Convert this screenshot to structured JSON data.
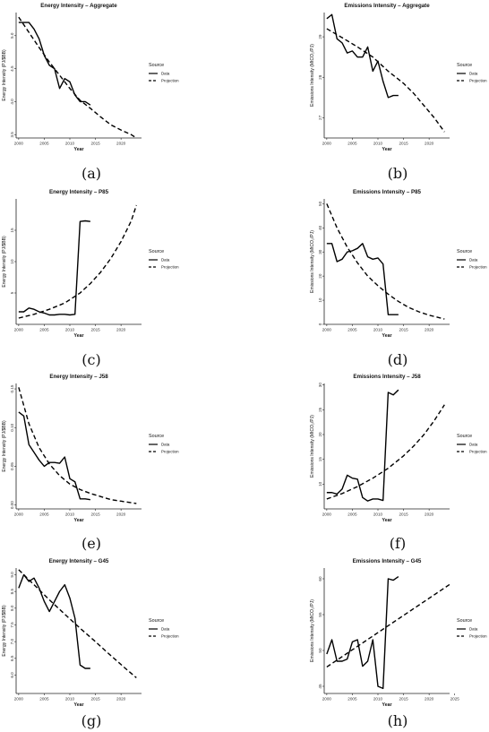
{
  "legend": {
    "title": "Source",
    "data_label": "Data",
    "projection_label": "Projection"
  },
  "chart_data": [
    {
      "id": "a",
      "caption": "(a)",
      "type": "line",
      "title": "Energy Intensity – Aggregate",
      "xlabel": "Year",
      "ylabel": "Energy Intensity (PJ/$BB)",
      "xlim": [
        1999.5,
        2024
      ],
      "ylim": [
        3.45,
        5.35
      ],
      "xticks": [
        2000,
        2005,
        2010,
        2015,
        2020
      ],
      "yticks": [
        3.5,
        4.0,
        4.5,
        5.0
      ],
      "ytick_labels": [
        "3.5",
        "4.0",
        "4.5",
        "5.0"
      ],
      "legend_position": "right",
      "series": [
        {
          "name": "Data",
          "style": "solid",
          "x": [
            2000,
            2001,
            2002,
            2003,
            2004,
            2005,
            2006,
            2007,
            2008,
            2009,
            2010,
            2011,
            2012,
            2013,
            2014
          ],
          "y": [
            5.2,
            5.2,
            5.2,
            5.1,
            4.95,
            4.7,
            4.55,
            4.5,
            4.2,
            4.35,
            4.3,
            4.1,
            4.0,
            4.0,
            3.95
          ]
        },
        {
          "name": "Projection",
          "style": "dashed",
          "x": [
            2000,
            2002,
            2004,
            2006,
            2008,
            2010,
            2012,
            2014,
            2016,
            2018,
            2020,
            2022,
            2023
          ],
          "y": [
            5.28,
            5.05,
            4.82,
            4.6,
            4.4,
            4.2,
            4.02,
            3.9,
            3.77,
            3.65,
            3.57,
            3.5,
            3.45
          ]
        }
      ]
    },
    {
      "id": "b",
      "caption": "(b)",
      "type": "line",
      "title": "Emissions Intensity – Aggregate",
      "xlabel": "Year",
      "ylabel": "Emissions Intensity (MtCO₂/PJ)",
      "xlim": [
        1999.5,
        2024
      ],
      "ylim": [
        26.5,
        29.6
      ],
      "xticks": [
        2000,
        2005,
        2010,
        2015,
        2020
      ],
      "yticks": [
        27,
        28,
        29
      ],
      "ytick_labels": [
        "27",
        "28",
        "29"
      ],
      "legend_position": "right",
      "series": [
        {
          "name": "Data",
          "style": "solid",
          "x": [
            2000,
            2001,
            2002,
            2003,
            2004,
            2005,
            2006,
            2007,
            2008,
            2009,
            2010,
            2011,
            2012,
            2013,
            2014
          ],
          "y": [
            29.45,
            29.55,
            28.95,
            28.85,
            28.6,
            28.65,
            28.5,
            28.5,
            28.75,
            28.15,
            28.4,
            27.9,
            27.5,
            27.55,
            27.55
          ]
        },
        {
          "name": "Projection",
          "style": "dashed",
          "x": [
            2000,
            2003,
            2006,
            2009,
            2012,
            2015,
            2017,
            2019,
            2021,
            2023
          ],
          "y": [
            29.2,
            28.98,
            28.75,
            28.5,
            28.15,
            27.85,
            27.6,
            27.3,
            27.0,
            26.65
          ]
        }
      ]
    },
    {
      "id": "c",
      "caption": "(c)",
      "type": "line",
      "title": "Energy Intensity – P85",
      "xlabel": "Year",
      "ylabel": "Energy Intensity (PJ/$BB)",
      "xlim": [
        1999.5,
        2024
      ],
      "ylim": [
        0,
        20
      ],
      "xticks": [
        2000,
        2005,
        2010,
        2015,
        2020
      ],
      "yticks": [
        5,
        10,
        15
      ],
      "ytick_labels": [
        "5",
        "10",
        "15"
      ],
      "legend_position": "right",
      "series": [
        {
          "name": "Data",
          "style": "solid",
          "x": [
            2000,
            2001,
            2002,
            2003,
            2004,
            2005,
            2006,
            2007,
            2008,
            2009,
            2010,
            2011,
            2012,
            2013,
            2014
          ],
          "y": [
            2.0,
            2.0,
            2.6,
            2.4,
            2.0,
            1.8,
            1.5,
            1.5,
            1.6,
            1.6,
            1.5,
            1.6,
            16.4,
            16.5,
            16.4
          ]
        },
        {
          "name": "Projection",
          "style": "dashed",
          "x": [
            2000,
            2003,
            2006,
            2009,
            2012,
            2014,
            2016,
            2018,
            2020,
            2022,
            2023
          ],
          "y": [
            1.0,
            1.6,
            2.4,
            3.4,
            5.0,
            6.5,
            8.3,
            10.5,
            13.2,
            16.5,
            19.0
          ]
        }
      ]
    },
    {
      "id": "d",
      "caption": "(d)",
      "type": "line",
      "title": "Emissions Intensity – P85",
      "xlabel": "Year",
      "ylabel": "Emissions Intensity (MtCO₂/PJ)",
      "xlim": [
        1999.5,
        2024
      ],
      "ylim": [
        0,
        52
      ],
      "xticks": [
        2000,
        2005,
        2010,
        2015,
        2020
      ],
      "yticks": [
        0,
        10,
        20,
        30,
        40,
        50
      ],
      "ytick_labels": [
        "0",
        "10",
        "20",
        "30",
        "40",
        "50"
      ],
      "legend_position": "right",
      "series": [
        {
          "name": "Data",
          "style": "solid",
          "x": [
            2000,
            2001,
            2002,
            2003,
            2004,
            2005,
            2006,
            2007,
            2008,
            2009,
            2010,
            2011,
            2012,
            2013,
            2014
          ],
          "y": [
            33.5,
            33.5,
            26,
            27,
            30,
            30.5,
            31.5,
            33.5,
            28,
            27,
            27.5,
            25,
            4,
            4,
            4
          ]
        },
        {
          "name": "Projection",
          "style": "dashed",
          "x": [
            2000,
            2002,
            2004,
            2006,
            2008,
            2010,
            2012,
            2014,
            2016,
            2018,
            2020,
            2023
          ],
          "y": [
            50,
            40,
            32,
            25.5,
            20,
            16,
            12.5,
            9.5,
            7,
            5.2,
            3.8,
            2.2
          ]
        }
      ]
    },
    {
      "id": "e",
      "caption": "(e)",
      "type": "line",
      "title": "Energy Intensity – J58",
      "xlabel": "Year",
      "ylabel": "Energy Intensity (PJ/$BB)",
      "xlim": [
        1999.5,
        2024
      ],
      "ylim": [
        -0.005,
        0.157
      ],
      "xticks": [
        2000,
        2005,
        2010,
        2015,
        2020
      ],
      "yticks": [
        0,
        0.05,
        0.1,
        0.15
      ],
      "ytick_labels": [
        "0.00",
        "0.05",
        "0.10",
        "0.15"
      ],
      "legend_position": "right",
      "series": [
        {
          "name": "Data",
          "style": "solid",
          "x": [
            2000,
            2001,
            2002,
            2003,
            2004,
            2005,
            2006,
            2007,
            2008,
            2009,
            2010,
            2011,
            2012,
            2013,
            2014
          ],
          "y": [
            0.12,
            0.115,
            0.078,
            0.068,
            0.058,
            0.05,
            0.055,
            0.055,
            0.054,
            0.062,
            0.034,
            0.03,
            0.008,
            0.008,
            0.007
          ]
        },
        {
          "name": "Projection",
          "style": "dashed",
          "x": [
            2000,
            2002,
            2004,
            2006,
            2008,
            2010,
            2012,
            2014,
            2016,
            2018,
            2020,
            2023
          ],
          "y": [
            0.152,
            0.105,
            0.074,
            0.053,
            0.038,
            0.027,
            0.02,
            0.015,
            0.011,
            0.007,
            0.005,
            0.002
          ]
        }
      ]
    },
    {
      "id": "f",
      "caption": "(f)",
      "type": "line",
      "title": "Emissions Intensity – J58",
      "xlabel": "Year",
      "ylabel": "Emissions Intensity (MtCO₂/PJ)",
      "xlim": [
        1999.5,
        2024
      ],
      "ylim": [
        5,
        30.3
      ],
      "xticks": [
        2000,
        2005,
        2010,
        2015,
        2020
      ],
      "yticks": [
        10,
        15,
        20,
        25,
        30
      ],
      "ytick_labels": [
        "10",
        "15",
        "20",
        "25",
        "30"
      ],
      "legend_position": "right",
      "series": [
        {
          "name": "Data",
          "style": "solid",
          "x": [
            2000,
            2001,
            2002,
            2003,
            2004,
            2005,
            2006,
            2007,
            2008,
            2009,
            2010,
            2011,
            2012,
            2013,
            2014
          ],
          "y": [
            8.3,
            8.3,
            8,
            9,
            11.8,
            11.2,
            11,
            7.3,
            6.6,
            7,
            7,
            6.7,
            28.5,
            28,
            29
          ]
        },
        {
          "name": "Projection",
          "style": "dashed",
          "x": [
            2000,
            2003,
            2006,
            2009,
            2012,
            2015,
            2017,
            2019,
            2021,
            2023
          ],
          "y": [
            7.0,
            8.1,
            9.5,
            11.2,
            13.2,
            15.7,
            17.7,
            20.0,
            22.8,
            26.0
          ]
        }
      ]
    },
    {
      "id": "g",
      "caption": "(g)",
      "type": "line",
      "title": "Energy Intensity – G45",
      "xlabel": "Year",
      "ylabel": "Energy Intensity (PJ/$BB)",
      "xlim": [
        1999.5,
        2024
      ],
      "ylim": [
        5.45,
        9.2
      ],
      "xticks": [
        2000,
        2005,
        2010,
        2015,
        2020
      ],
      "yticks": [
        6.0,
        6.5,
        7.0,
        7.5,
        8.0,
        8.5,
        9.0
      ],
      "ytick_labels": [
        "6.0",
        "6.5",
        "7.0",
        "7.5",
        "8.0",
        "8.5",
        "9.0"
      ],
      "legend_position": "right",
      "series": [
        {
          "name": "Data",
          "style": "solid",
          "x": [
            2000,
            2001,
            2002,
            2003,
            2004,
            2005,
            2006,
            2007,
            2008,
            2009,
            2010,
            2011,
            2012,
            2013,
            2014
          ],
          "y": [
            8.6,
            9.0,
            8.8,
            8.9,
            8.6,
            8.2,
            7.9,
            8.2,
            8.5,
            8.7,
            8.3,
            7.7,
            6.3,
            6.2,
            6.2
          ]
        },
        {
          "name": "Projection",
          "style": "dashed",
          "x": [
            2000,
            2003,
            2006,
            2009,
            2012,
            2015,
            2017,
            2019,
            2021,
            2023
          ],
          "y": [
            9.15,
            8.7,
            8.25,
            7.82,
            7.4,
            7.0,
            6.72,
            6.45,
            6.18,
            5.92
          ]
        }
      ]
    },
    {
      "id": "h",
      "caption": "(h)",
      "type": "line",
      "title": "Emissions Intensity – G45",
      "xlabel": "Year",
      "ylabel": "Emissions Intensity (MtCO₂/PJ)",
      "xlim": [
        1999.5,
        2024
      ],
      "ylim": [
        44,
        61.5
      ],
      "xticks": [
        2000,
        2005,
        2010,
        2015,
        2020,
        2025
      ],
      "yticks": [
        45,
        50,
        55,
        60
      ],
      "ytick_labels": [
        "45",
        "50",
        "55",
        "60"
      ],
      "legend_position": "right",
      "series": [
        {
          "name": "Data",
          "style": "solid",
          "x": [
            2000,
            2001,
            2002,
            2003,
            2004,
            2005,
            2006,
            2007,
            2008,
            2009,
            2010,
            2011,
            2012,
            2013,
            2014
          ],
          "y": [
            49.5,
            51.5,
            48.5,
            48.5,
            48.8,
            51.2,
            51.5,
            47.8,
            48.5,
            51.5,
            45,
            44.7,
            60,
            59.8,
            60.3
          ]
        },
        {
          "name": "Projection",
          "style": "dashed",
          "x": [
            2000,
            2024
          ],
          "y": [
            47.7,
            59.2
          ]
        }
      ]
    }
  ]
}
